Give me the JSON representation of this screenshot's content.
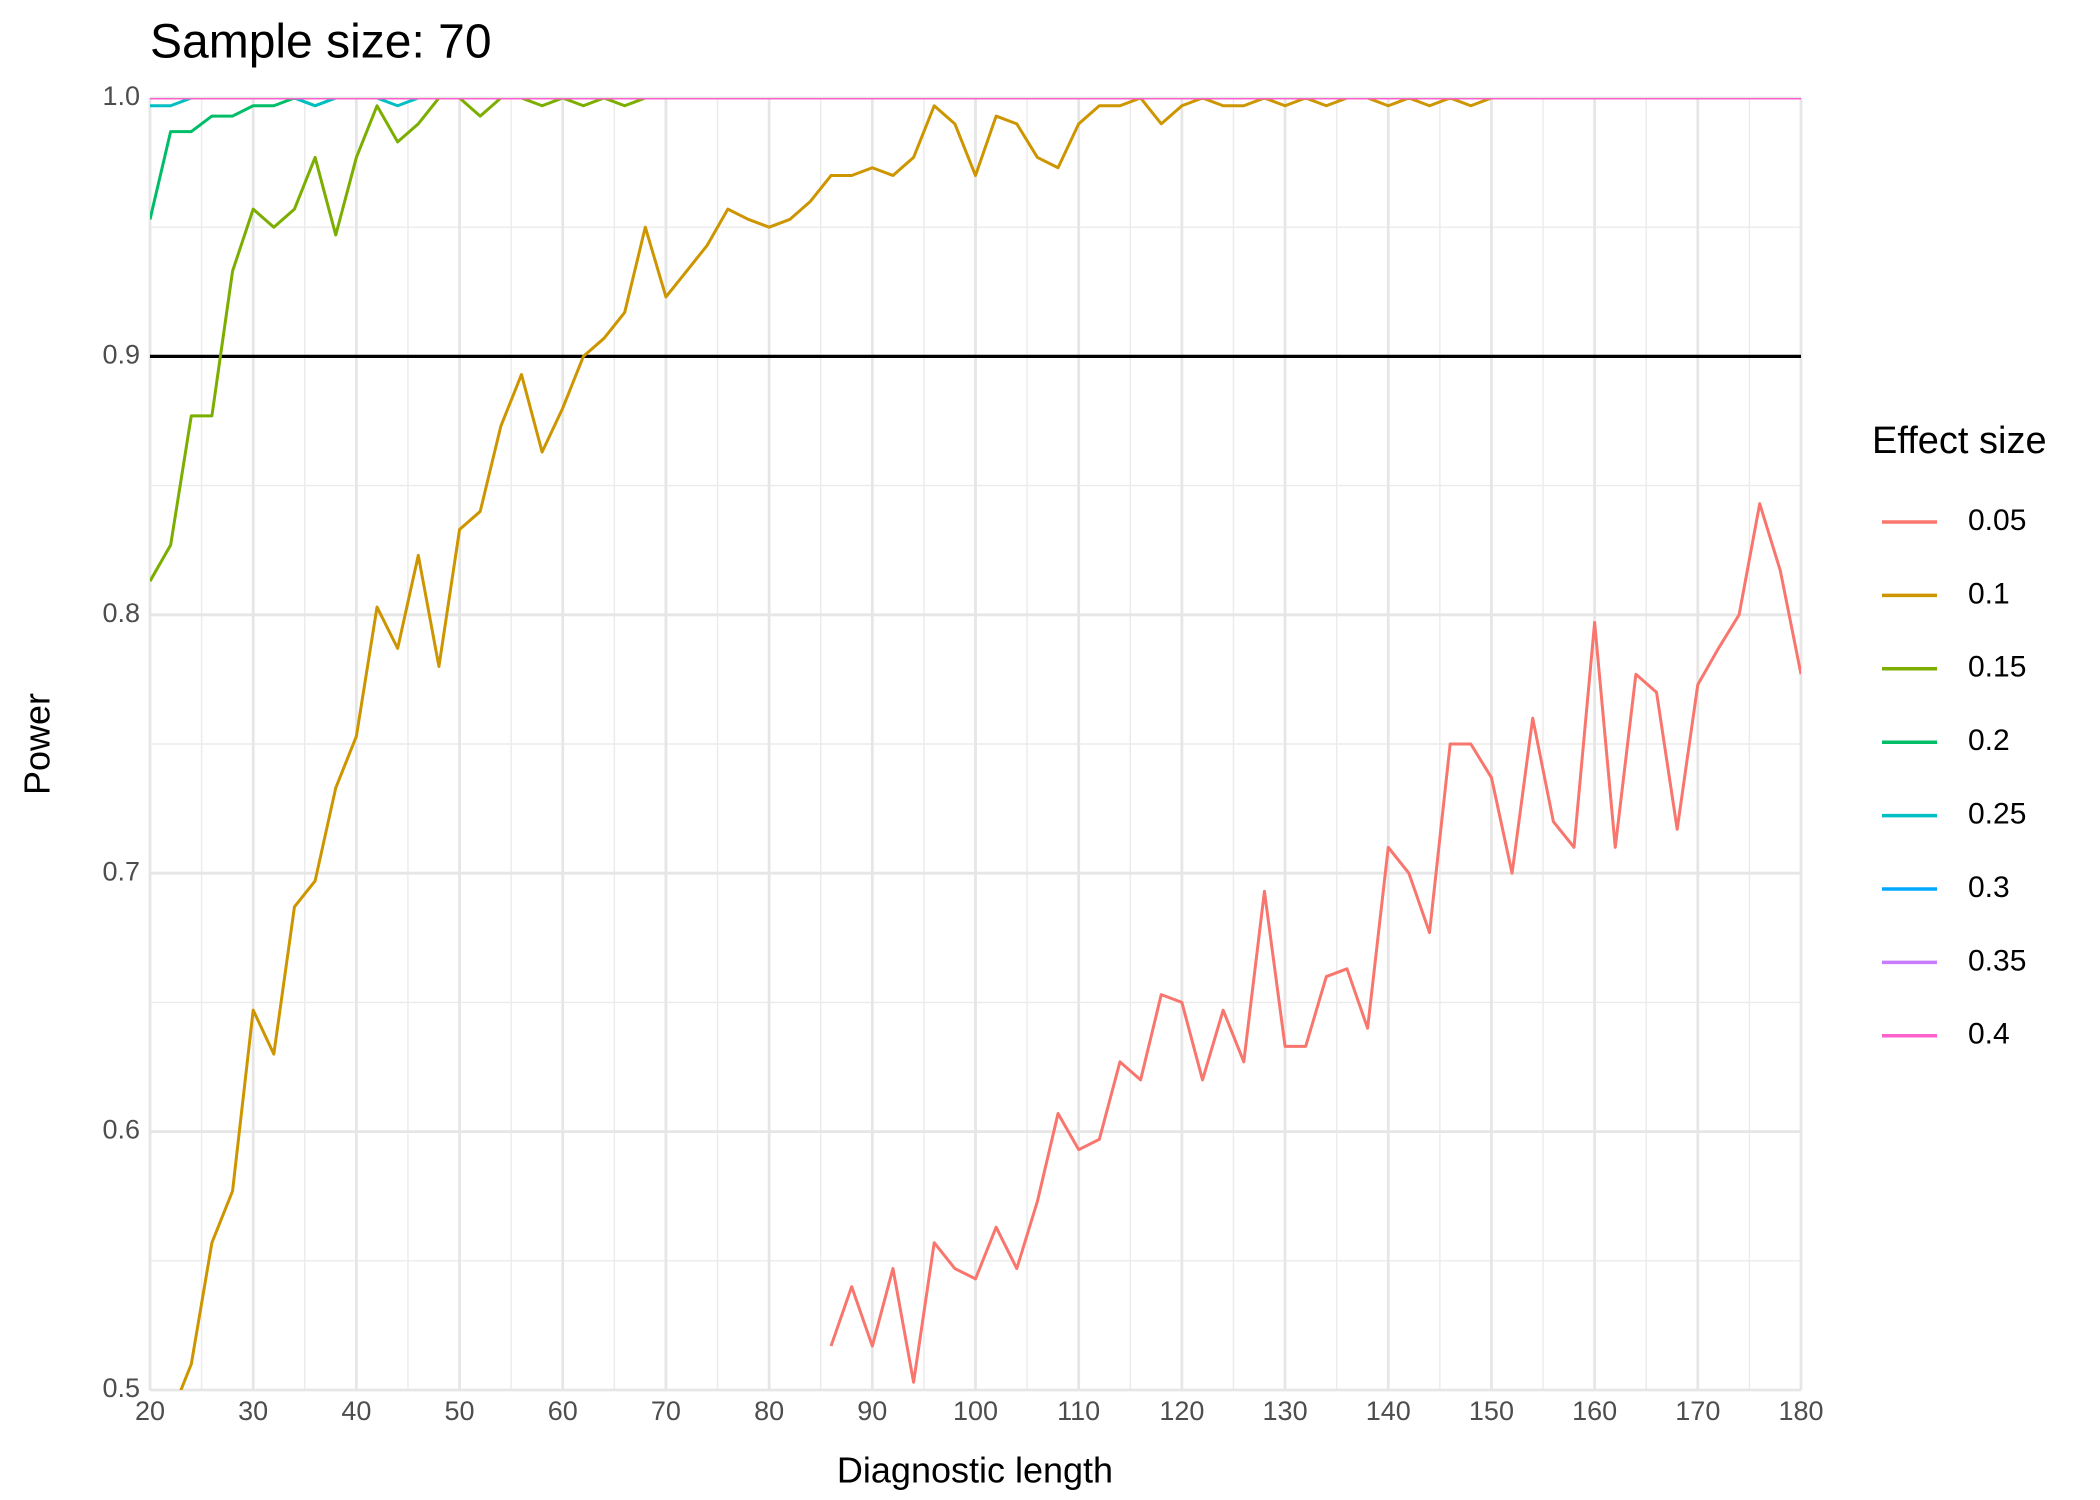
{
  "chart_data": {
    "type": "line",
    "title": "Sample size: 70",
    "x_label": "Diagnostic length",
    "y_label": "Power",
    "legend_title": "Effect size",
    "legend_position": "right",
    "grid": true,
    "xlim": [
      20,
      180
    ],
    "ylim": [
      0.5,
      1
    ],
    "xticks": [
      20,
      30,
      40,
      50,
      60,
      70,
      80,
      90,
      100,
      110,
      120,
      130,
      140,
      150,
      160,
      170,
      180
    ],
    "yticks": [
      0.5,
      0.6,
      0.7,
      0.8,
      0.9,
      {
        "value": 1,
        "label": "1.0"
      }
    ],
    "hline": 0.9,
    "hline_color": "#000000",
    "x": [
      20,
      22,
      24,
      26,
      28,
      30,
      32,
      34,
      36,
      38,
      40,
      42,
      44,
      46,
      48,
      50,
      52,
      54,
      56,
      58,
      60,
      62,
      64,
      66,
      68,
      70,
      72,
      74,
      76,
      78,
      80,
      82,
      84,
      86,
      88,
      90,
      92,
      94,
      96,
      98,
      100,
      102,
      104,
      106,
      108,
      110,
      112,
      114,
      116,
      118,
      120,
      122,
      124,
      126,
      128,
      130,
      132,
      134,
      136,
      138,
      140,
      142,
      144,
      146,
      148,
      150,
      152,
      154,
      156,
      158,
      160,
      162,
      164,
      166,
      168,
      170,
      172,
      174,
      176,
      178,
      180
    ],
    "series": [
      {
        "name": "0.05",
        "color": "#F8766D",
        "values": [
          null,
          null,
          null,
          null,
          null,
          null,
          null,
          null,
          null,
          null,
          null,
          null,
          null,
          null,
          null,
          null,
          null,
          null,
          null,
          null,
          null,
          null,
          null,
          null,
          null,
          null,
          null,
          null,
          null,
          null,
          null,
          null,
          null,
          0.517,
          0.54,
          0.517,
          0.547,
          0.503,
          0.557,
          0.547,
          0.543,
          0.563,
          0.547,
          0.573,
          0.607,
          0.593,
          0.597,
          0.627,
          0.62,
          0.653,
          0.65,
          0.62,
          0.647,
          0.627,
          0.693,
          0.633,
          0.633,
          0.66,
          0.663,
          0.64,
          0.71,
          0.7,
          0.677,
          0.75,
          0.75,
          0.737,
          0.7,
          0.76,
          0.72,
          0.71,
          0.797,
          0.71,
          0.777,
          0.77,
          0.717,
          0.773,
          0.787,
          0.8,
          0.843,
          0.817,
          0.777
        ]
      },
      {
        "name": "0.1",
        "color": "#CD9600",
        "values": [
          null,
          0.49,
          0.51,
          0.557,
          0.577,
          0.647,
          0.63,
          0.687,
          0.697,
          0.733,
          0.753,
          0.803,
          0.787,
          0.823,
          0.78,
          0.833,
          0.84,
          0.873,
          0.893,
          0.863,
          0.88,
          0.9,
          0.907,
          0.917,
          0.95,
          0.923,
          0.933,
          0.943,
          0.957,
          0.953,
          0.95,
          0.953,
          0.96,
          0.97,
          0.97,
          0.973,
          0.97,
          0.977,
          0.997,
          0.99,
          0.97,
          0.993,
          0.99,
          0.977,
          0.973,
          0.99,
          0.997,
          0.997,
          1,
          0.99,
          0.997,
          1,
          0.997,
          0.997,
          1,
          0.997,
          1,
          0.997,
          1,
          1,
          0.997,
          1,
          0.997,
          1,
          0.997,
          1,
          1,
          1,
          1,
          1,
          1,
          1,
          1,
          1,
          1,
          1,
          1,
          1,
          1,
          1,
          1
        ]
      },
      {
        "name": "0.15",
        "color": "#7CAE00",
        "values": [
          0.813,
          0.827,
          0.877,
          0.877,
          0.933,
          0.957,
          0.95,
          0.957,
          0.977,
          0.947,
          0.977,
          0.997,
          0.983,
          0.99,
          1,
          1,
          0.993,
          1,
          1,
          0.997,
          1,
          0.997,
          1,
          0.997,
          1,
          1,
          1,
          1,
          1,
          1,
          1,
          1,
          1,
          1,
          1,
          1,
          1,
          1,
          1,
          1,
          1,
          1,
          1,
          1,
          1,
          1,
          1,
          1,
          1,
          1,
          1,
          1,
          1,
          1,
          1,
          1,
          1,
          1,
          1,
          1,
          1,
          1,
          1,
          1,
          1,
          1,
          1,
          1,
          1,
          1,
          1,
          1,
          1,
          1,
          1,
          1,
          1,
          1,
          1,
          1,
          1
        ]
      },
      {
        "name": "0.2",
        "color": "#00BE67",
        "values": [
          0.953,
          0.987,
          0.987,
          0.993,
          0.993,
          0.997,
          0.997,
          1,
          0.997,
          1,
          1,
          1,
          1,
          1,
          1,
          1,
          1,
          1,
          1,
          1,
          1,
          1,
          1,
          1,
          1,
          1,
          1,
          1,
          1,
          1,
          1,
          1,
          1,
          1,
          1,
          1,
          1,
          1,
          1,
          1,
          1,
          1,
          1,
          1,
          1,
          1,
          1,
          1,
          1,
          1,
          1,
          1,
          1,
          1,
          1,
          1,
          1,
          1,
          1,
          1,
          1,
          1,
          1,
          1,
          1,
          1,
          1,
          1,
          1,
          1,
          1,
          1,
          1,
          1,
          1,
          1,
          1,
          1,
          1,
          1,
          1
        ]
      },
      {
        "name": "0.25",
        "color": "#00BFC4",
        "values": [
          0.997,
          0.997,
          1,
          1,
          1,
          1,
          1,
          1,
          0.997,
          1,
          1,
          1,
          0.997,
          1,
          1,
          1,
          1,
          1,
          1,
          1,
          1,
          1,
          1,
          1,
          1,
          1,
          1,
          1,
          1,
          1,
          1,
          1,
          1,
          1,
          1,
          1,
          1,
          1,
          1,
          1,
          1,
          1,
          1,
          1,
          1,
          1,
          1,
          1,
          1,
          1,
          1,
          1,
          1,
          1,
          1,
          1,
          1,
          1,
          1,
          1,
          1,
          1,
          1,
          1,
          1,
          1,
          1,
          1,
          1,
          1,
          1,
          1,
          1,
          1,
          1,
          1,
          1,
          1,
          1,
          1,
          1
        ]
      },
      {
        "name": "0.3",
        "color": "#00A9FF",
        "values": [
          1,
          1,
          1,
          1,
          1,
          1,
          1,
          1,
          1,
          1,
          1,
          1,
          1,
          1,
          1,
          1,
          1,
          1,
          1,
          1,
          1,
          1,
          1,
          1,
          1,
          1,
          1,
          1,
          1,
          1,
          1,
          1,
          1,
          1,
          1,
          1,
          1,
          1,
          1,
          1,
          1,
          1,
          1,
          1,
          1,
          1,
          1,
          1,
          1,
          1,
          1,
          1,
          1,
          1,
          1,
          1,
          1,
          1,
          1,
          1,
          1,
          1,
          1,
          1,
          1,
          1,
          1,
          1,
          1,
          1,
          1,
          1,
          1,
          1,
          1,
          1,
          1,
          1,
          1,
          1,
          1
        ]
      },
      {
        "name": "0.35",
        "color": "#C77CFF",
        "values": [
          1,
          1,
          1,
          1,
          1,
          1,
          1,
          1,
          1,
          1,
          1,
          1,
          1,
          1,
          1,
          1,
          1,
          1,
          1,
          1,
          1,
          1,
          1,
          1,
          1,
          1,
          1,
          1,
          1,
          1,
          1,
          1,
          1,
          1,
          1,
          1,
          1,
          1,
          1,
          1,
          1,
          1,
          1,
          1,
          1,
          1,
          1,
          1,
          1,
          1,
          1,
          1,
          1,
          1,
          1,
          1,
          1,
          1,
          1,
          1,
          1,
          1,
          1,
          1,
          1,
          1,
          1,
          1,
          1,
          1,
          1,
          1,
          1,
          1,
          1,
          1,
          1,
          1,
          1,
          1,
          1
        ]
      },
      {
        "name": "0.4",
        "color": "#FF61CC",
        "values": [
          1,
          1,
          1,
          1,
          1,
          1,
          1,
          1,
          1,
          1,
          1,
          1,
          1,
          1,
          1,
          1,
          1,
          1,
          1,
          1,
          1,
          1,
          1,
          1,
          1,
          1,
          1,
          1,
          1,
          1,
          1,
          1,
          1,
          1,
          1,
          1,
          1,
          1,
          1,
          1,
          1,
          1,
          1,
          1,
          1,
          1,
          1,
          1,
          1,
          1,
          1,
          1,
          1,
          1,
          1,
          1,
          1,
          1,
          1,
          1,
          1,
          1,
          1,
          1,
          1,
          1,
          1,
          1,
          1,
          1,
          1,
          1,
          1,
          1,
          1,
          1,
          1,
          1,
          1,
          1,
          1
        ]
      }
    ]
  }
}
